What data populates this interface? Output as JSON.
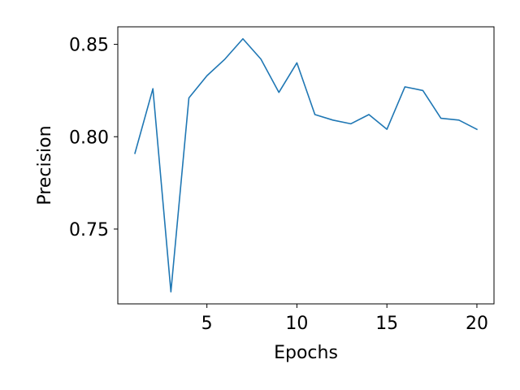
{
  "chart_data": {
    "type": "line",
    "xlabel": "Epochs",
    "ylabel": "Precision",
    "xlim": [
      0.05,
      20.95
    ],
    "ylim": [
      0.7095,
      0.8595
    ],
    "xticks": [
      5,
      10,
      15,
      20
    ],
    "xtick_labels": [
      "5",
      "10",
      "15",
      "20"
    ],
    "yticks": [
      0.75,
      0.8,
      0.85
    ],
    "ytick_labels": [
      "0.75",
      "0.80",
      "0.85"
    ],
    "grid": false,
    "series": [
      {
        "color": "#1f77b4",
        "x": [
          1,
          2,
          3,
          4,
          5,
          6,
          7,
          8,
          9,
          10,
          11,
          12,
          13,
          14,
          15,
          16,
          17,
          18,
          19,
          20
        ],
        "y": [
          0.791,
          0.826,
          0.716,
          0.821,
          0.833,
          0.842,
          0.853,
          0.842,
          0.824,
          0.84,
          0.812,
          0.809,
          0.807,
          0.812,
          0.804,
          0.827,
          0.825,
          0.81,
          0.809,
          0.804
        ]
      }
    ]
  }
}
